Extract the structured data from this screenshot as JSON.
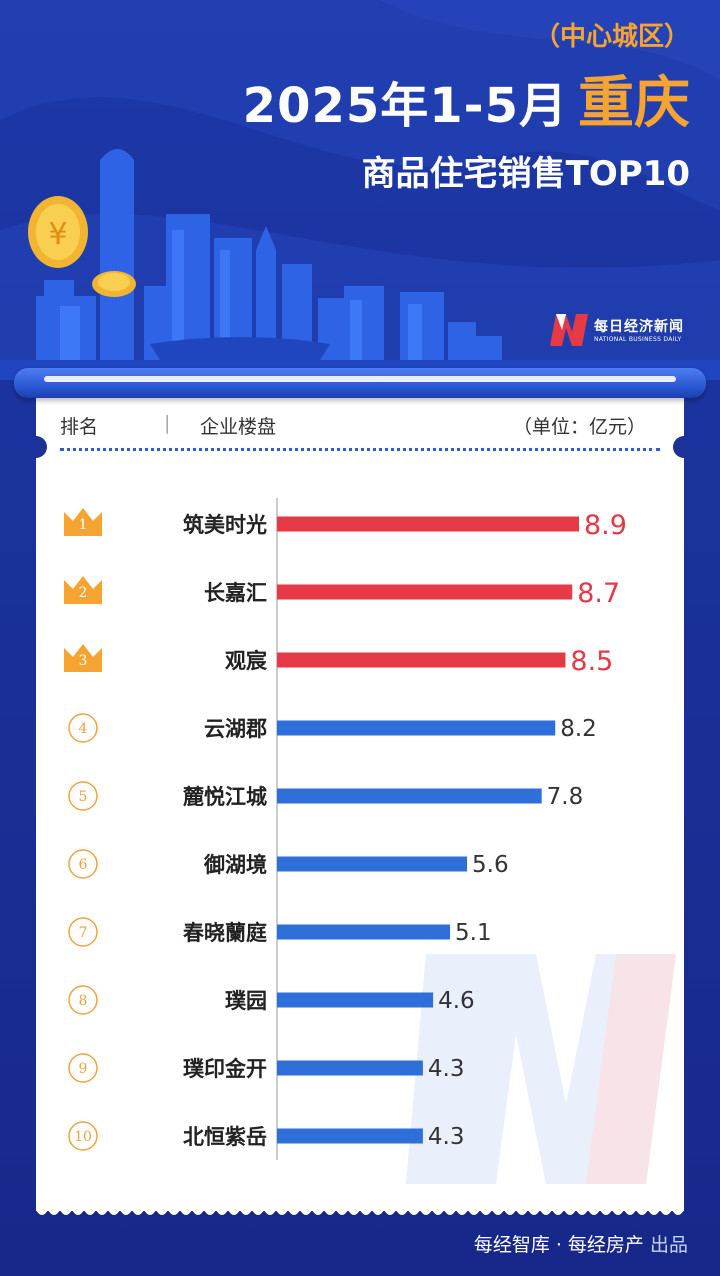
{
  "header": {
    "region": "（中心城区）",
    "title_date": "2025年1-5月",
    "title_city": "重庆",
    "subtitle": "商品住宅销售TOP10"
  },
  "logo": {
    "name_cn": "每日经济新闻",
    "name_en": "NATIONAL BUSINESS DAILY"
  },
  "table_header": {
    "rank": "排名",
    "separator": "|",
    "company": "企业楼盘",
    "unit": "（单位：亿元）"
  },
  "footer": {
    "producer": "每经智库 · 每经房产",
    "suffix": "出品"
  },
  "colors": {
    "top3": "#e63946",
    "rest": "#2f6fd9",
    "crown": "#f5a431",
    "circle": "#f0a23e",
    "background": "#1d38a8"
  },
  "chart_data": {
    "type": "bar",
    "orientation": "horizontal",
    "categories": [
      "筑美时光",
      "长嘉汇",
      "观宸",
      "云湖郡",
      "麓悦江城",
      "御湖境",
      "春晓蘭庭",
      "璞园",
      "璞印金开",
      "北恒紫岳"
    ],
    "ranks": [
      "1",
      "2",
      "3",
      "4",
      "5",
      "6",
      "7",
      "8",
      "9",
      "10"
    ],
    "values": [
      8.9,
      8.7,
      8.5,
      8.2,
      7.8,
      5.6,
      5.1,
      4.6,
      4.3,
      4.3
    ],
    "value_labels": [
      "8.9",
      "8.7",
      "8.5",
      "8.2",
      "7.8",
      "5.6",
      "5.1",
      "4.6",
      "4.3",
      "4.3"
    ],
    "title": "",
    "xlabel": "",
    "ylabel": "",
    "xlim": [
      0,
      8.9
    ],
    "grid": false,
    "legend": "none"
  }
}
